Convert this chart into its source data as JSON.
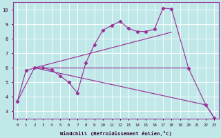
{
  "xlabel": "Windchill (Refroidissement éolien,°C)",
  "bg_color": "#c0e8e8",
  "grid_color": "#aad4d4",
  "line_color": "#993399",
  "xlim_min": -0.5,
  "xlim_max": 23.5,
  "ylim_min": 2.5,
  "ylim_max": 10.5,
  "xticks": [
    0,
    1,
    2,
    3,
    4,
    5,
    6,
    7,
    8,
    9,
    10,
    11,
    12,
    13,
    14,
    15,
    16,
    17,
    18,
    19,
    20,
    21,
    22,
    23
  ],
  "yticks": [
    3,
    4,
    5,
    6,
    7,
    8,
    9,
    10
  ],
  "curve1_x": [
    0,
    1,
    2,
    3,
    4,
    5,
    6,
    7,
    8,
    9,
    10,
    11,
    12,
    13,
    14,
    15,
    16,
    17,
    18,
    20,
    22,
    23
  ],
  "curve1_y": [
    3.7,
    5.8,
    6.0,
    6.0,
    5.85,
    5.45,
    5.0,
    4.28,
    6.35,
    7.6,
    8.6,
    8.9,
    9.2,
    8.7,
    8.5,
    8.5,
    8.65,
    10.1,
    10.05,
    5.95,
    3.45,
    2.55
  ],
  "curve2_x": [
    2,
    20
  ],
  "curve2_y": [
    6.0,
    6.0
  ],
  "curve3_x": [
    2,
    18
  ],
  "curve3_y": [
    6.0,
    8.45
  ],
  "curve4_x": [
    0,
    2,
    22,
    23
  ],
  "curve4_y": [
    3.7,
    6.0,
    3.45,
    2.55
  ],
  "figsize": [
    3.2,
    2.0
  ],
  "dpi": 100
}
